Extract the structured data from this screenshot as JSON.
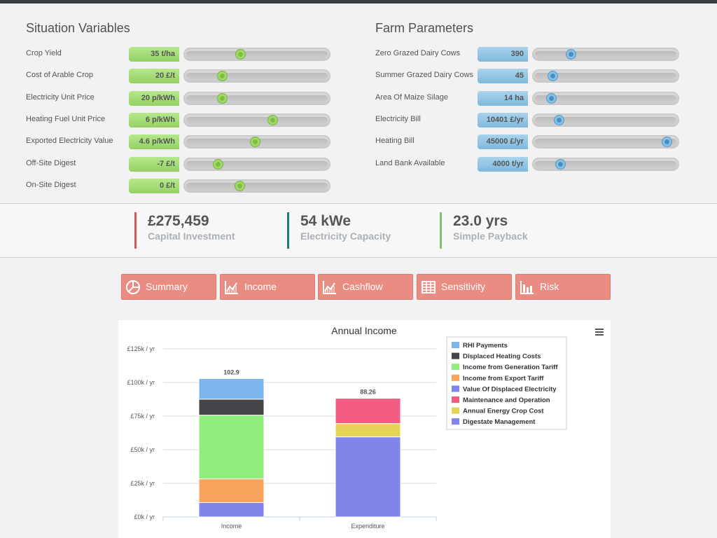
{
  "situation": {
    "title": "Situation Variables",
    "rows": [
      {
        "label": "Crop Yield",
        "value": "35 t/ha",
        "level": 0.38
      },
      {
        "label": "Cost of Arable Crop",
        "value": "20 £/t",
        "level": 0.24
      },
      {
        "label": "Electricity Unit Price",
        "value": "20 p/kWh",
        "level": 0.24
      },
      {
        "label": "Heating Fuel Unit Price",
        "value": "6 p/kWh",
        "level": 0.62
      },
      {
        "label": "Exported Electricity Value",
        "value": "4.6 p/kWh",
        "level": 0.49
      },
      {
        "label": "Off-Site Digest",
        "value": "-7 £/t",
        "level": 0.21
      },
      {
        "label": "On-Site Digest",
        "value": "0 £/t",
        "level": 0.37
      }
    ]
  },
  "farm": {
    "title": "Farm Parameters",
    "rows": [
      {
        "label": "Zero Grazed Dairy Cows",
        "value": "390",
        "level": 0.24
      },
      {
        "label": "Summer Grazed Dairy Cows",
        "value": "45",
        "level": 0.1
      },
      {
        "label": "Area Of Maize Silage",
        "value": "14 ha",
        "level": 0.09
      },
      {
        "label": "Electricity Bill",
        "value": "10401 £/yr",
        "level": 0.15
      },
      {
        "label": "Heating Bill",
        "value": "45000 £/yr",
        "level": 0.97
      },
      {
        "label": "Land Bank Available",
        "value": "4000 t/yr",
        "level": 0.16
      }
    ]
  },
  "kpis": [
    {
      "value": "£275,459",
      "label": "Capital Investment",
      "color": "#c9585f"
    },
    {
      "value": "54 kWe",
      "label": "Electricity Capacity",
      "color": "#1c7d78"
    },
    {
      "value": "23.0 yrs",
      "label": "Simple Payback",
      "color": "#7fc36b"
    }
  ],
  "tabs": [
    {
      "label": "Summary",
      "icon": "pie-chart-icon"
    },
    {
      "label": "Income",
      "icon": "line-chart-icon"
    },
    {
      "label": "Cashflow",
      "icon": "line-chart-icon"
    },
    {
      "label": "Sensitivity",
      "icon": "table-icon"
    },
    {
      "label": "Risk",
      "icon": "bar-chart-icon"
    }
  ],
  "chart_data": {
    "type": "bar",
    "stacked": true,
    "title": "Annual Income",
    "categories": [
      "Income",
      "Expenditure"
    ],
    "yTicks": [
      "£0k / yr",
      "£25k / yr",
      "£50k / yr",
      "£75k / yr",
      "£100k / yr",
      "£125k / yr"
    ],
    "ylim": [
      0,
      125
    ],
    "grid": true,
    "legend_position": "top-right",
    "totals": [
      "102.9",
      "88.26"
    ],
    "series": [
      {
        "name": "RHI Payments",
        "color": "#7cb5ec",
        "values": [
          15.3,
          0
        ]
      },
      {
        "name": "Displaced Heating Costs",
        "color": "#434348",
        "values": [
          11.9,
          0
        ]
      },
      {
        "name": "Income from Generation Tariff",
        "color": "#90ed7d",
        "values": [
          47.4,
          0
        ]
      },
      {
        "name": "Income from Export Tariff",
        "color": "#f7a35c",
        "values": [
          17.6,
          0
        ]
      },
      {
        "name": "Value Of Displaced Electricity",
        "color": "#8085e9",
        "values": [
          10.7,
          0
        ]
      },
      {
        "name": "Maintenance and Operation",
        "color": "#f15c80",
        "values": [
          0,
          18.8
        ]
      },
      {
        "name": "Annual Energy Crop Cost",
        "color": "#e4d354",
        "values": [
          0,
          9.9
        ]
      },
      {
        "name": "Digestate Management",
        "color": "#8085e9",
        "values": [
          0,
          59.56
        ]
      }
    ]
  }
}
